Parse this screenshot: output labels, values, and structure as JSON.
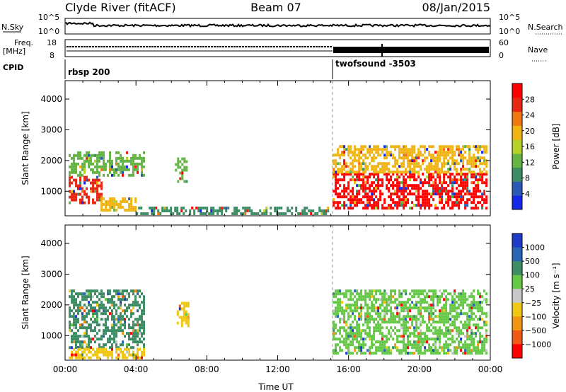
{
  "header": {
    "station": "Clyde River (fitACF)",
    "beam": "Beam 07",
    "date": "08/Jan/2015"
  },
  "top_panels": {
    "nsky_label": "N.Sky",
    "nsearch_label": "N.Search",
    "nsky_ticks": [
      "10^5",
      "10^0"
    ],
    "nsearch_ticks": [
      "10^5",
      "10^0"
    ],
    "freq_label": "Freq.",
    "freq_unit": "[MHz]",
    "freq_ticks": [
      "18",
      "8"
    ],
    "nave_label": "Nave",
    "nave_ticks": [
      "60",
      "0"
    ],
    "cpid_label": "CPID",
    "cpid_modes": [
      {
        "name": "rbsp 200",
        "start_hour": 0
      },
      {
        "name": "twofsound -3503",
        "start_hour": 15
      }
    ]
  },
  "chart_data": [
    {
      "type": "heatmap",
      "name": "power",
      "ylabel": "Slant Range [km]",
      "xlabel": "",
      "xlim": [
        0,
        24
      ],
      "ylim": [
        200,
        4600
      ],
      "yticks": [
        1000,
        2000,
        3000,
        4000
      ],
      "colorbar": {
        "label": "Power [dB]",
        "ticks": [
          "4",
          "8",
          "12",
          "16",
          "20",
          "24",
          "28"
        ],
        "range": [
          0,
          32
        ],
        "colors": [
          "#1428e6",
          "#2a5ab4",
          "#3c8c64",
          "#64b446",
          "#b4d22a",
          "#f0b414",
          "#f07814",
          "#e62814",
          "#ff0000"
        ]
      },
      "regions": [
        {
          "t0": 0.2,
          "t1": 2.0,
          "r0": 600,
          "r1": 1500,
          "level": 26
        },
        {
          "t0": 0.2,
          "t1": 4.5,
          "r0": 1500,
          "r1": 2300,
          "level": 14
        },
        {
          "t0": 2.0,
          "t1": 4.0,
          "r0": 400,
          "r1": 800,
          "level": 18
        },
        {
          "t0": 4.0,
          "t1": 14.8,
          "r0": 250,
          "r1": 500,
          "level": 8
        },
        {
          "t0": 6.2,
          "t1": 6.8,
          "r0": 1300,
          "r1": 2100,
          "level": 12
        },
        {
          "t0": 15.1,
          "t1": 23.8,
          "r0": 450,
          "r1": 1600,
          "level": 30
        },
        {
          "t0": 15.1,
          "t1": 23.8,
          "r0": 1600,
          "r1": 2500,
          "level": 18
        }
      ]
    },
    {
      "type": "heatmap",
      "name": "velocity",
      "ylabel": "Slant Range [km]",
      "xlabel": "Time UT",
      "xlim": [
        0,
        24
      ],
      "ylim": [
        200,
        4600
      ],
      "yticks": [
        1000,
        2000,
        3000,
        4000
      ],
      "xticks": [
        "00:00",
        "04:00",
        "08:00",
        "12:00",
        "16:00",
        "20:00",
        "00:00"
      ],
      "colorbar": {
        "label": "Velocity [m s⁻¹]",
        "ticks": [
          "1000",
          "500",
          "100",
          "25",
          "−25",
          "−100",
          "−500",
          "−1000"
        ],
        "colors": [
          "#1e3cc8",
          "#2a64b4",
          "#3c8c64",
          "#64c846",
          "#c8c8c8",
          "#f0c814",
          "#f09614",
          "#f05a14",
          "#ff0000"
        ]
      },
      "regions": [
        {
          "t0": 0.2,
          "t1": 4.5,
          "r0": 600,
          "r1": 2500,
          "level": 100
        },
        {
          "t0": 0.2,
          "t1": 4.5,
          "r0": 250,
          "r1": 600,
          "level": -100
        },
        {
          "t0": 6.3,
          "t1": 6.9,
          "r0": 1300,
          "r1": 2100,
          "level": -100
        },
        {
          "t0": 15.1,
          "t1": 23.8,
          "r0": 450,
          "r1": 2500,
          "level": 25
        }
      ]
    }
  ]
}
